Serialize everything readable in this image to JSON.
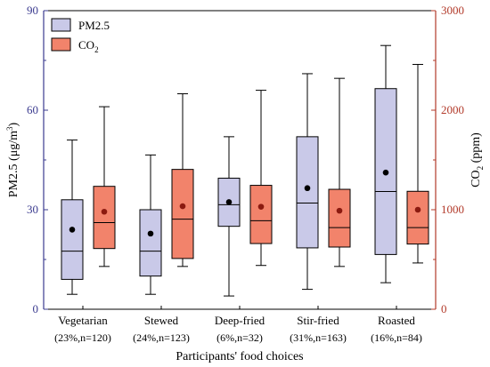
{
  "colors": {
    "pm_fill": "#c9c9e8",
    "co2_fill": "#f2836b",
    "left_axis": "#3b3b8f",
    "right_axis": "#b23a2a",
    "mean_pm": "#000000",
    "mean_co2": "#8b1a10"
  },
  "chart_data": {
    "type": "box",
    "xlabel": "Participants' food choices",
    "ylabel_left": {
      "main": "PM2.5 (",
      "unit": "μg/m",
      "sup": "3",
      "close": ")"
    },
    "ylabel_right": {
      "main": "CO",
      "sub": "2",
      "unit": " (ppm)"
    },
    "ylim_left": [
      0,
      90
    ],
    "ylim_right": [
      0,
      3000
    ],
    "yticks_left": [
      "0",
      "30",
      "60",
      "90"
    ],
    "yticks_right": [
      "0",
      "1000",
      "2000",
      "3000"
    ],
    "legend": {
      "placement": "top-left",
      "items": [
        {
          "label": "PM2.5",
          "sub": ""
        },
        {
          "label": "CO",
          "sub": "2"
        }
      ]
    },
    "categories": [
      {
        "name": "Vegetarian",
        "note": "(23%,n=120)"
      },
      {
        "name": "Stewed",
        "note": "(24%,n=123)"
      },
      {
        "name": "Deep-fried",
        "note": "(6%,n=32)"
      },
      {
        "name": "Stir-fried",
        "note": "(31%,n=163)"
      },
      {
        "name": "Roasted",
        "note": "(16%,n=84)"
      }
    ],
    "series": [
      {
        "name": "PM2.5",
        "axis": "left",
        "boxes": [
          {
            "min": 4.5,
            "q1": 9,
            "median": 17.5,
            "q3": 33,
            "max": 51,
            "mean": 24
          },
          {
            "min": 4.5,
            "q1": 10,
            "median": 17.5,
            "q3": 30,
            "max": 46.5,
            "mean": 22.8
          },
          {
            "min": 4,
            "q1": 25,
            "median": 31.5,
            "q3": 39.5,
            "max": 52,
            "mean": 32.3
          },
          {
            "min": 6,
            "q1": 18.5,
            "median": 32,
            "q3": 52,
            "max": 71,
            "mean": 36.5
          },
          {
            "min": 8,
            "q1": 16.5,
            "median": 35.5,
            "q3": 66.5,
            "max": 79.5,
            "mean": 41.2
          }
        ]
      },
      {
        "name": "CO2",
        "axis": "right",
        "boxes": [
          {
            "min": 430,
            "q1": 610,
            "median": 870,
            "q3": 1235,
            "max": 2035,
            "mean": 980
          },
          {
            "min": 430,
            "q1": 510,
            "median": 905,
            "q3": 1405,
            "max": 2165,
            "mean": 1035
          },
          {
            "min": 440,
            "q1": 660,
            "median": 890,
            "q3": 1245,
            "max": 2200,
            "mean": 1030
          },
          {
            "min": 430,
            "q1": 625,
            "median": 820,
            "q3": 1205,
            "max": 2320,
            "mean": 990
          },
          {
            "min": 465,
            "q1": 655,
            "median": 820,
            "q3": 1185,
            "max": 2460,
            "mean": 1000
          }
        ]
      }
    ]
  }
}
